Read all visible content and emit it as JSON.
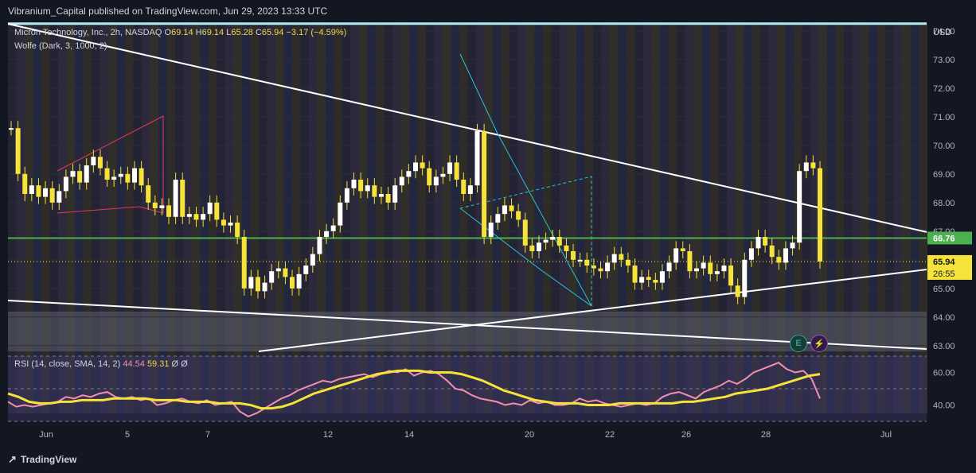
{
  "header": {
    "publisher": "Vibranium_Capital published on TradingView.com, Jun 29, 2023 13:33 UTC"
  },
  "legend": {
    "symbol": "Micron Technology, Inc., 2h, NASDAQ",
    "open_label": "O",
    "open": "69.14",
    "high_label": "H",
    "high": "69.14",
    "low_label": "L",
    "low": "65.28",
    "close_label": "C",
    "close": "65.94",
    "change": "−3.17 (−4.59%)",
    "indicator": "Wolfe (Dark, 3, 1000, 2)",
    "rsi_label": "RSI (14, close, SMA, 14, 2)",
    "rsi_value": "44.54",
    "rsi_sma": "59.31",
    "rsi_extra": "Ø Ø"
  },
  "price_axis": {
    "currency": "USD",
    "ticks": [
      "74.00",
      "73.00",
      "72.00",
      "71.00",
      "70.00",
      "69.00",
      "68.00",
      "67.00",
      "66.00",
      "65.00",
      "64.00",
      "63.00"
    ],
    "green_label": "66.76",
    "price_label": "65.94",
    "timer_label": "26:55"
  },
  "rsi_axis": {
    "ticks": [
      "60.00",
      "40.00"
    ]
  },
  "time_axis": {
    "labels": [
      "Jun",
      "5",
      "7",
      "12",
      "14",
      "20",
      "22",
      "26",
      "28",
      "Jul"
    ]
  },
  "badges": {
    "earnings": "E",
    "dividend": "⚡"
  },
  "footer": {
    "brand": "TradingView"
  },
  "colors": {
    "background": "#131722",
    "candle": "#f5e33a",
    "green_line": "#4caf50",
    "rsi": "#f48fb1",
    "rsi_sma": "#f5e33a",
    "trendline": "#ffffff",
    "wolfe": "#26c6da",
    "red_pattern": "#e53957"
  },
  "chart_data": {
    "type": "candlestick",
    "symbol": "Micron Technology, Inc.",
    "interval": "2h",
    "ylim": [
      62.8,
      74.3
    ],
    "x_tick_labels": [
      "Jun",
      "5",
      "7",
      "12",
      "14",
      "20",
      "22",
      "26",
      "28",
      "Jul"
    ],
    "closes": [
      70.6,
      69.0,
      68.3,
      68.6,
      68.2,
      68.5,
      68.0,
      68.4,
      68.9,
      69.1,
      68.7,
      69.3,
      69.6,
      69.2,
      68.8,
      68.9,
      69.0,
      68.7,
      69.2,
      68.6,
      68.0,
      67.8,
      67.9,
      67.5,
      68.8,
      67.5,
      67.6,
      67.4,
      67.6,
      68.0,
      67.4,
      67.2,
      67.3,
      66.8,
      65.0,
      65.4,
      64.9,
      65.2,
      65.6,
      65.7,
      65.4,
      65.0,
      65.5,
      65.8,
      66.2,
      66.8,
      67.0,
      67.2,
      68.0,
      68.5,
      68.8,
      68.4,
      68.6,
      68.2,
      68.3,
      68.0,
      68.6,
      68.9,
      69.1,
      69.4,
      69.2,
      68.6,
      68.9,
      69.0,
      69.4,
      68.8,
      68.3,
      68.6,
      70.5,
      66.8,
      67.3,
      67.6,
      67.9,
      67.7,
      67.4,
      66.5,
      66.3,
      66.6,
      66.7,
      66.8,
      66.5,
      66.3,
      66.0,
      66.0,
      65.8,
      65.7,
      65.6,
      65.9,
      66.2,
      66.0,
      65.8,
      65.2,
      65.4,
      65.3,
      65.2,
      65.6,
      65.9,
      66.4,
      66.3,
      65.6,
      65.7,
      65.9,
      65.5,
      65.6,
      65.8,
      65.1,
      64.7,
      66.0,
      66.4,
      66.8,
      66.5,
      66.1,
      65.9,
      66.4,
      66.6,
      69.1,
      69.4,
      69.2,
      65.94
    ],
    "rsi": [
      42,
      39,
      40,
      39,
      40,
      41,
      42,
      45,
      44,
      46,
      45,
      47,
      48,
      45,
      44,
      45,
      43,
      44,
      40,
      41,
      43,
      44,
      42,
      41,
      43,
      40,
      41,
      42,
      36,
      33,
      35,
      38,
      41,
      44,
      46,
      49,
      51,
      53,
      55,
      54,
      56,
      57,
      58,
      59,
      57,
      59,
      61,
      60,
      62,
      58,
      60,
      61,
      59,
      55,
      50,
      49,
      46,
      44,
      43,
      42,
      40,
      41,
      40,
      43,
      41,
      42,
      40,
      40,
      41,
      44,
      42,
      43,
      41,
      40,
      39,
      40,
      41,
      40,
      41,
      45,
      47,
      48,
      46,
      44,
      48,
      50,
      52,
      55,
      53,
      56,
      60,
      62,
      64,
      66,
      62,
      60,
      61,
      56,
      44
    ],
    "rsi_sma": [
      47,
      45,
      42,
      41,
      41,
      42,
      42,
      43,
      43,
      43,
      44,
      44,
      44,
      44,
      43,
      43,
      43,
      42,
      42,
      42,
      41,
      41,
      41,
      40,
      38,
      38,
      39,
      41,
      44,
      47,
      49,
      51,
      53,
      55,
      57,
      59,
      60,
      61,
      61,
      61,
      60,
      60,
      60,
      59,
      57,
      55,
      52,
      49,
      47,
      45,
      43,
      42,
      41,
      41,
      41,
      40,
      40,
      40,
      41,
      41,
      41,
      41,
      41,
      41,
      42,
      42,
      43,
      44,
      45,
      47,
      48,
      49,
      50,
      52,
      54,
      56,
      58,
      59
    ]
  }
}
